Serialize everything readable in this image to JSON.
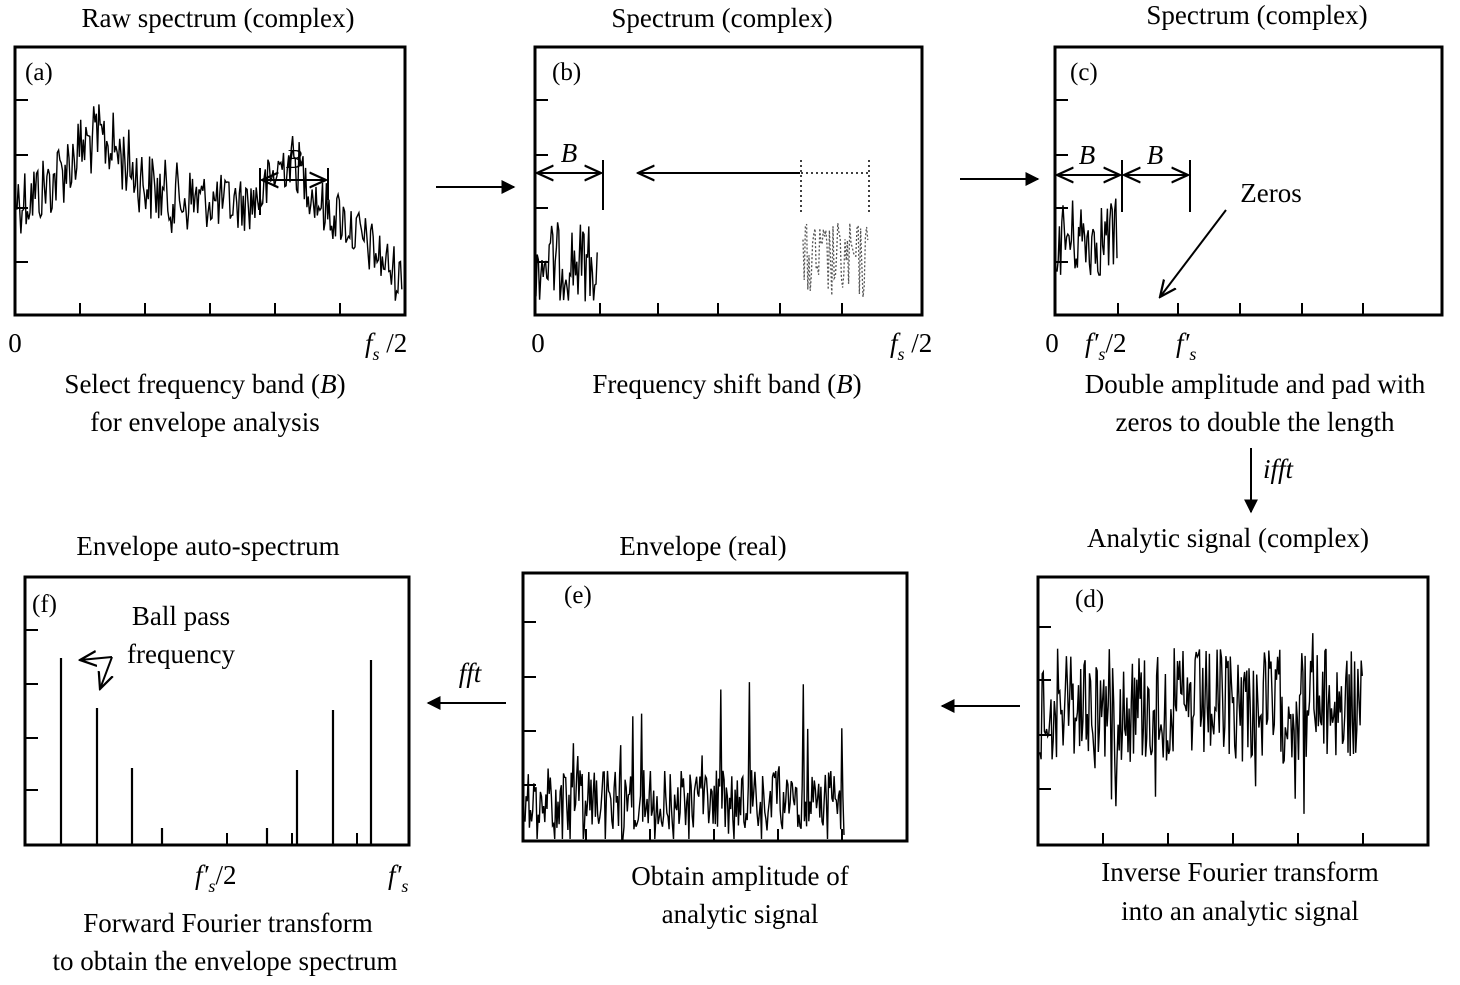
{
  "panels": {
    "a": {
      "title": "Raw spectrum (complex)",
      "label": "(a)",
      "band": "B",
      "tick_start": "0",
      "tick_end_sym": "f",
      "tick_end_sub": "s",
      "tick_end_rest": " /2",
      "caption_line1_pre": "Select frequency band (",
      "caption_line1_sym": "B",
      "caption_line1_post": ")",
      "caption_line2": "for envelope analysis"
    },
    "b": {
      "title": "Spectrum (complex)",
      "label": "(b)",
      "band": "B",
      "tick_start": "0",
      "tick_end_sym": "f",
      "tick_end_sub": "s",
      "tick_end_rest": " /2",
      "caption_pre": "Frequency shift band (",
      "caption_sym": "B",
      "caption_post": ")"
    },
    "c": {
      "title": "Spectrum (complex)",
      "label": "(c)",
      "band1": "B",
      "band2": "B",
      "zeros": "Zeros",
      "tick_start": "0",
      "tick_mid_sym": "f′",
      "tick_mid_sub": "s",
      "tick_mid_rest": "/2",
      "tick_end_sym": "f′",
      "tick_end_sub": "s",
      "caption_line1": "Double amplitude and pad with",
      "caption_line2": "zeros to double the length"
    },
    "d": {
      "title": "Analytic signal (complex)",
      "label": "(d)",
      "caption_line1": "Inverse Fourier transform",
      "caption_line2": "into an analytic signal"
    },
    "e": {
      "title": "Envelope (real)",
      "label": "(e)",
      "caption_line1": "Obtain amplitude of",
      "caption_line2": "analytic signal"
    },
    "f": {
      "title": "Envelope auto-spectrum",
      "label": "(f)",
      "annotation_line1": "Ball pass",
      "annotation_line2": "frequency",
      "tick_mid_sym": "f′",
      "tick_mid_sub": "s",
      "tick_mid_rest": "/2",
      "tick_end_sym": "f′",
      "tick_end_sub": "s",
      "caption_line1": "Forward Fourier transform",
      "caption_line2": "to obtain the envelope spectrum"
    }
  },
  "arrows": {
    "ifft": "ifft",
    "fft": "fft"
  }
}
